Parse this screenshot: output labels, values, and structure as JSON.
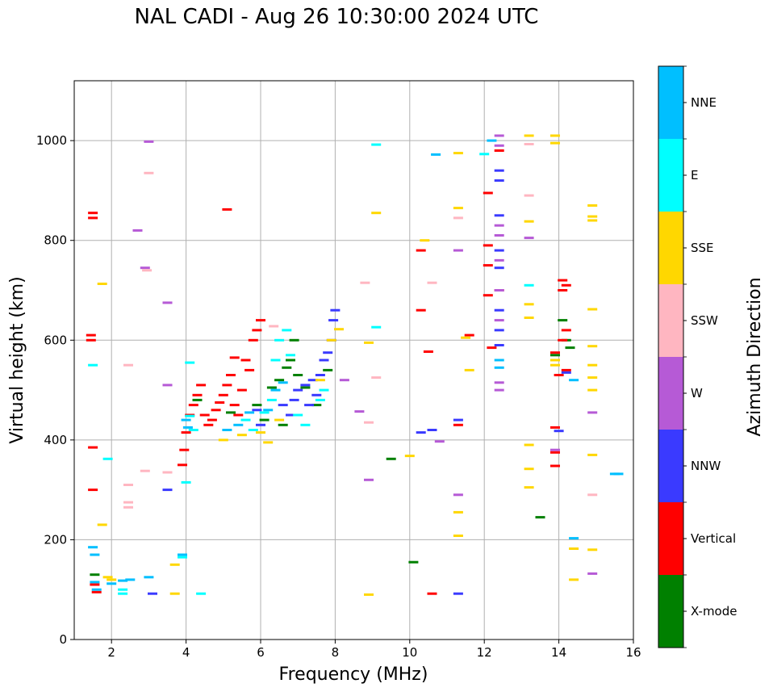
{
  "chart_data": {
    "type": "scatter",
    "title": "NAL CADI - Aug 26 10:30:00 2024 UTC",
    "xlabel": "Frequency (MHz)",
    "ylabel": "Virtual height (km)",
    "xlim": [
      1.0,
      16.0
    ],
    "ylim": [
      0,
      1120
    ],
    "xticks": [
      "2",
      "4",
      "6",
      "8",
      "10",
      "12",
      "14",
      "16"
    ],
    "yticks": [
      "0",
      "200",
      "400",
      "600",
      "800",
      "1000"
    ],
    "grid": true,
    "colorbar": {
      "label": "Azimuth Direction",
      "categories": [
        {
          "name": "X-mode",
          "color": "#008000"
        },
        {
          "name": "Vertical",
          "color": "#ff0000"
        },
        {
          "name": "NNW",
          "color": "#3a3aff"
        },
        {
          "name": "W",
          "color": "#b65ad6"
        },
        {
          "name": "SSW",
          "color": "#ffb6c1"
        },
        {
          "name": "SSE",
          "color": "#ffd700"
        },
        {
          "name": "E",
          "color": "#00ffff"
        },
        {
          "name": "NNE",
          "color": "#00bfff"
        }
      ]
    },
    "series": [
      {
        "name": "X-mode",
        "points": [
          [
            4.3,
            480
          ],
          [
            5.2,
            455
          ],
          [
            5.9,
            470
          ],
          [
            6.3,
            505
          ],
          [
            6.5,
            520
          ],
          [
            6.7,
            545
          ],
          [
            6.8,
            560
          ],
          [
            7.0,
            530
          ],
          [
            7.2,
            505
          ],
          [
            6.1,
            440
          ],
          [
            6.6,
            430
          ],
          [
            7.5,
            470
          ],
          [
            7.8,
            540
          ],
          [
            9.5,
            362
          ],
          [
            10.1,
            155
          ],
          [
            13.5,
            245
          ],
          [
            14.1,
            640
          ],
          [
            14.2,
            600
          ],
          [
            14.3,
            585
          ],
          [
            13.9,
            570
          ],
          [
            6.9,
            600
          ],
          [
            1.55,
            130
          ]
        ]
      },
      {
        "name": "Vertical",
        "points": [
          [
            1.45,
            610
          ],
          [
            1.45,
            600
          ],
          [
            1.5,
            855
          ],
          [
            1.5,
            845
          ],
          [
            1.5,
            385
          ],
          [
            1.5,
            300
          ],
          [
            1.6,
            95
          ],
          [
            1.55,
            110
          ],
          [
            3.9,
            350
          ],
          [
            3.95,
            380
          ],
          [
            4.0,
            415
          ],
          [
            4.1,
            450
          ],
          [
            4.2,
            470
          ],
          [
            4.3,
            490
          ],
          [
            4.4,
            510
          ],
          [
            4.5,
            450
          ],
          [
            4.6,
            430
          ],
          [
            4.7,
            440
          ],
          [
            4.8,
            460
          ],
          [
            4.9,
            475
          ],
          [
            5.0,
            490
          ],
          [
            5.1,
            510
          ],
          [
            5.2,
            530
          ],
          [
            5.3,
            470
          ],
          [
            5.4,
            450
          ],
          [
            5.5,
            500
          ],
          [
            5.6,
            560
          ],
          [
            5.7,
            540
          ],
          [
            5.8,
            600
          ],
          [
            5.9,
            620
          ],
          [
            6.0,
            640
          ],
          [
            5.3,
            565
          ],
          [
            10.3,
            780
          ],
          [
            10.3,
            660
          ],
          [
            10.5,
            577
          ],
          [
            10.6,
            92
          ],
          [
            11.3,
            430
          ],
          [
            11.6,
            610
          ],
          [
            12.1,
            790
          ],
          [
            12.1,
            750
          ],
          [
            12.1,
            690
          ],
          [
            12.2,
            585
          ],
          [
            12.1,
            895
          ],
          [
            12.4,
            980
          ],
          [
            12.4,
            700
          ],
          [
            14.1,
            720
          ],
          [
            14.2,
            710
          ],
          [
            14.1,
            700
          ],
          [
            14.2,
            620
          ],
          [
            14.1,
            600
          ],
          [
            14.2,
            540
          ],
          [
            14.0,
            530
          ],
          [
            13.9,
            575
          ],
          [
            13.9,
            425
          ],
          [
            13.9,
            375
          ],
          [
            13.9,
            348
          ],
          [
            5.1,
            862
          ]
        ]
      },
      {
        "name": "NNW",
        "points": [
          [
            6.9,
            480
          ],
          [
            7.0,
            500
          ],
          [
            7.2,
            510
          ],
          [
            7.4,
            520
          ],
          [
            7.5,
            490
          ],
          [
            7.6,
            530
          ],
          [
            7.7,
            560
          ],
          [
            7.8,
            575
          ],
          [
            7.9,
            600
          ],
          [
            7.95,
            640
          ],
          [
            6.6,
            470
          ],
          [
            6.8,
            450
          ],
          [
            7.3,
            470
          ],
          [
            5.9,
            460
          ],
          [
            6.0,
            430
          ],
          [
            10.3,
            415
          ],
          [
            10.6,
            420
          ],
          [
            11.3,
            92
          ],
          [
            11.3,
            440
          ],
          [
            12.4,
            940
          ],
          [
            12.4,
            920
          ],
          [
            12.4,
            850
          ],
          [
            12.4,
            780
          ],
          [
            12.4,
            745
          ],
          [
            12.4,
            660
          ],
          [
            12.4,
            620
          ],
          [
            12.4,
            590
          ],
          [
            14.2,
            535
          ],
          [
            14.0,
            418
          ],
          [
            3.5,
            300
          ],
          [
            3.1,
            92
          ],
          [
            8.0,
            660
          ]
        ]
      },
      {
        "name": "W",
        "points": [
          [
            3.0,
            998
          ],
          [
            2.7,
            820
          ],
          [
            2.9,
            745
          ],
          [
            3.5,
            510
          ],
          [
            3.5,
            675
          ],
          [
            8.25,
            520
          ],
          [
            8.65,
            457
          ],
          [
            8.9,
            320
          ],
          [
            10.8,
            397
          ],
          [
            11.3,
            290
          ],
          [
            11.3,
            780
          ],
          [
            12.4,
            1010
          ],
          [
            12.4,
            990
          ],
          [
            12.4,
            830
          ],
          [
            12.4,
            810
          ],
          [
            12.4,
            760
          ],
          [
            12.4,
            700
          ],
          [
            12.4,
            640
          ],
          [
            12.4,
            515
          ],
          [
            12.4,
            500
          ],
          [
            13.2,
            805
          ],
          [
            13.9,
            380
          ],
          [
            14.9,
            455
          ],
          [
            14.9,
            132
          ]
        ]
      },
      {
        "name": "SSW",
        "points": [
          [
            2.45,
            550
          ],
          [
            2.45,
            310
          ],
          [
            2.45,
            275
          ],
          [
            2.45,
            265
          ],
          [
            2.95,
            740
          ],
          [
            2.9,
            338
          ],
          [
            3.0,
            935
          ],
          [
            3.5,
            335
          ],
          [
            6.35,
            628
          ],
          [
            8.8,
            715
          ],
          [
            8.9,
            435
          ],
          [
            9.1,
            525
          ],
          [
            10.6,
            715
          ],
          [
            11.3,
            845
          ],
          [
            13.2,
            890
          ],
          [
            13.2,
            993
          ],
          [
            14.9,
            290
          ]
        ]
      },
      {
        "name": "SSE",
        "points": [
          [
            1.75,
            230
          ],
          [
            1.75,
            713
          ],
          [
            1.9,
            125
          ],
          [
            2.0,
            120
          ],
          [
            3.7,
            150
          ],
          [
            3.7,
            92
          ],
          [
            5.0,
            400
          ],
          [
            5.5,
            410
          ],
          [
            6.0,
            415
          ],
          [
            6.2,
            395
          ],
          [
            6.5,
            440
          ],
          [
            7.6,
            520
          ],
          [
            7.9,
            600
          ],
          [
            8.1,
            622
          ],
          [
            8.9,
            595
          ],
          [
            8.9,
            90
          ],
          [
            9.1,
            855
          ],
          [
            10.0,
            368
          ],
          [
            10.4,
            800
          ],
          [
            11.3,
            975
          ],
          [
            11.3,
            865
          ],
          [
            11.3,
            255
          ],
          [
            11.3,
            208
          ],
          [
            11.5,
            605
          ],
          [
            11.6,
            540
          ],
          [
            13.2,
            1010
          ],
          [
            13.2,
            838
          ],
          [
            13.2,
            672
          ],
          [
            13.2,
            645
          ],
          [
            13.2,
            390
          ],
          [
            13.2,
            342
          ],
          [
            13.2,
            305
          ],
          [
            13.9,
            1010
          ],
          [
            13.9,
            995
          ],
          [
            13.9,
            560
          ],
          [
            13.9,
            550
          ],
          [
            14.9,
            870
          ],
          [
            14.9,
            848
          ],
          [
            14.9,
            840
          ],
          [
            14.9,
            662
          ],
          [
            14.9,
            588
          ],
          [
            14.9,
            550
          ],
          [
            14.9,
            525
          ],
          [
            14.9,
            500
          ],
          [
            14.9,
            370
          ],
          [
            14.9,
            180
          ],
          [
            14.4,
            120
          ],
          [
            14.4,
            182
          ]
        ]
      },
      {
        "name": "E",
        "points": [
          [
            1.5,
            550
          ],
          [
            1.9,
            362
          ],
          [
            2.3,
            100
          ],
          [
            2.3,
            92
          ],
          [
            4.0,
            315
          ],
          [
            4.1,
            555
          ],
          [
            4.4,
            92
          ],
          [
            5.8,
            420
          ],
          [
            6.1,
            455
          ],
          [
            6.3,
            480
          ],
          [
            6.4,
            560
          ],
          [
            6.5,
            600
          ],
          [
            6.7,
            620
          ],
          [
            6.8,
            570
          ],
          [
            7.0,
            450
          ],
          [
            7.2,
            430
          ],
          [
            7.6,
            480
          ],
          [
            7.7,
            500
          ],
          [
            9.1,
            992
          ],
          [
            9.1,
            626
          ],
          [
            12.0,
            973
          ],
          [
            13.2,
            710
          ],
          [
            3.9,
            165
          ],
          [
            4.1,
            448
          ],
          [
            4.2,
            420
          ],
          [
            5.6,
            440
          ]
        ]
      },
      {
        "name": "NNE",
        "points": [
          [
            1.5,
            185
          ],
          [
            1.55,
            170
          ],
          [
            1.55,
            115
          ],
          [
            1.6,
            100
          ],
          [
            2.0,
            112
          ],
          [
            2.3,
            118
          ],
          [
            2.5,
            120
          ],
          [
            3.0,
            125
          ],
          [
            3.9,
            170
          ],
          [
            4.0,
            440
          ],
          [
            4.05,
            425
          ],
          [
            5.1,
            420
          ],
          [
            5.4,
            430
          ],
          [
            5.7,
            455
          ],
          [
            6.2,
            460
          ],
          [
            6.4,
            500
          ],
          [
            6.6,
            515
          ],
          [
            10.7,
            972
          ],
          [
            12.2,
            1000
          ],
          [
            12.4,
            560
          ],
          [
            12.4,
            545
          ],
          [
            15.5,
            332
          ],
          [
            15.6,
            332
          ],
          [
            14.4,
            520
          ],
          [
            14.4,
            203
          ]
        ]
      }
    ]
  }
}
